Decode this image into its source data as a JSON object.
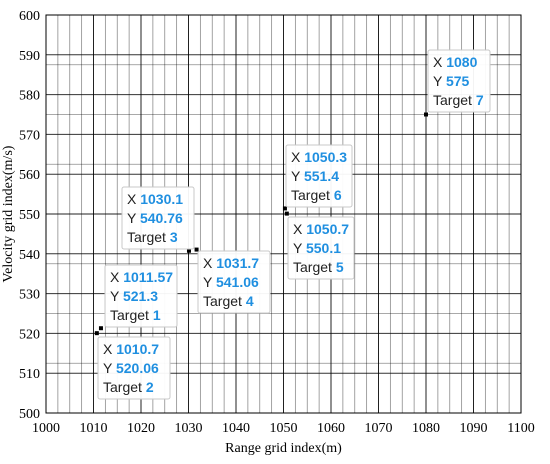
{
  "chart_data": {
    "type": "scatter",
    "xlabel": "Range grid index(m)",
    "ylabel": "Velocity grid index(m/s)",
    "xlim": [
      1000,
      1100
    ],
    "ylim": [
      500,
      600
    ],
    "x_ticks": [
      1000,
      1010,
      1020,
      1030,
      1040,
      1050,
      1060,
      1070,
      1080,
      1090,
      1100
    ],
    "y_ticks": [
      500,
      510,
      520,
      530,
      540,
      550,
      560,
      570,
      580,
      590,
      600
    ],
    "grid": true,
    "fine_grid": {
      "x_step": 2.5,
      "y_positions": [
        512.5,
        525,
        537.5,
        550,
        562.5,
        575,
        587.5
      ]
    },
    "colors": {
      "marker": "#000000",
      "grid": "#000000",
      "tip_value": "#1f8fe0"
    },
    "points": [
      {
        "x": 1011.57,
        "y": 521.3,
        "target": "1",
        "x_text": "1011.57",
        "y_text": "521.3"
      },
      {
        "x": 1010.7,
        "y": 520.06,
        "target": "2",
        "x_text": "1010.7",
        "y_text": "520.06"
      },
      {
        "x": 1030.1,
        "y": 540.76,
        "target": "3",
        "x_text": "1030.1",
        "y_text": "540.76"
      },
      {
        "x": 1031.7,
        "y": 541.06,
        "target": "4",
        "x_text": "1031.7",
        "y_text": "541.06"
      },
      {
        "x": 1050.7,
        "y": 550.1,
        "target": "5",
        "x_text": "1050.7",
        "y_text": "550.1"
      },
      {
        "x": 1050.3,
        "y": 551.4,
        "target": "6",
        "x_text": "1050.3",
        "y_text": "551.4"
      },
      {
        "x": 1080,
        "y": 575,
        "target": "7",
        "x_text": "1080",
        "y_text": "575"
      }
    ],
    "tooltip_labels": {
      "x": "X",
      "y": "Y",
      "target": "Target"
    }
  }
}
